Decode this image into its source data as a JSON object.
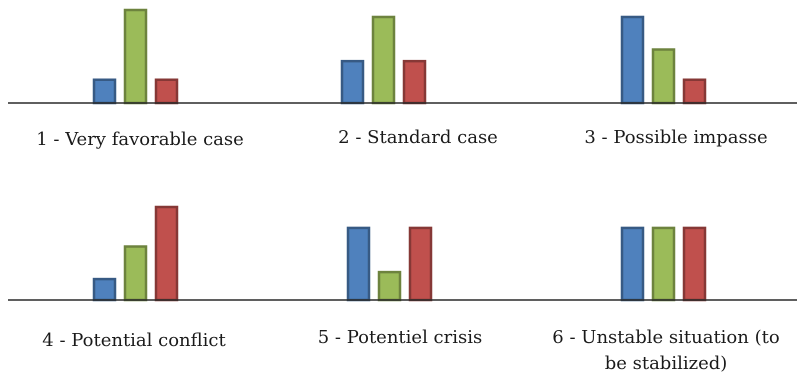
{
  "chart_data": [
    {
      "type": "bar",
      "caption": "1 - Very favorable case",
      "series": [
        {
          "color": "#4f81bd",
          "values": [
            1
          ]
        },
        {
          "color": "#9bbb59",
          "values": [
            4
          ]
        },
        {
          "color": "#c0504d",
          "values": [
            1
          ]
        }
      ],
      "ylim": [
        0,
        4
      ]
    },
    {
      "type": "bar",
      "caption": "2 - Standard case",
      "series": [
        {
          "color": "#4f81bd",
          "values": [
            1.8
          ]
        },
        {
          "color": "#9bbb59",
          "values": [
            3.7
          ]
        },
        {
          "color": "#c0504d",
          "values": [
            1.8
          ]
        }
      ],
      "ylim": [
        0,
        4
      ]
    },
    {
      "type": "bar",
      "caption": "3 - Possible impasse",
      "series": [
        {
          "color": "#4f81bd",
          "values": [
            3.7
          ]
        },
        {
          "color": "#9bbb59",
          "values": [
            2.3
          ]
        },
        {
          "color": "#c0504d",
          "values": [
            1
          ]
        }
      ],
      "ylim": [
        0,
        4
      ]
    },
    {
      "type": "bar",
      "caption": "4 - Potential conflict",
      "series": [
        {
          "color": "#4f81bd",
          "values": [
            0.9
          ]
        },
        {
          "color": "#9bbb59",
          "values": [
            2.3
          ]
        },
        {
          "color": "#c0504d",
          "values": [
            4
          ]
        }
      ],
      "ylim": [
        0,
        4
      ]
    },
    {
      "type": "bar",
      "caption": "5 - Potentiel crisis",
      "series": [
        {
          "color": "#4f81bd",
          "values": [
            3.1
          ]
        },
        {
          "color": "#9bbb59",
          "values": [
            1.2
          ]
        },
        {
          "color": "#c0504d",
          "values": [
            3.1
          ]
        }
      ],
      "ylim": [
        0,
        4
      ]
    },
    {
      "type": "bar",
      "caption": [
        "6 - Unstable situation (to",
        "be stabilized)"
      ],
      "series": [
        {
          "color": "#4f81bd",
          "values": [
            3.1
          ]
        },
        {
          "color": "#9bbb59",
          "values": [
            3.1
          ]
        },
        {
          "color": "#c0504d",
          "values": [
            3.1
          ]
        }
      ],
      "ylim": [
        0,
        4
      ]
    }
  ]
}
